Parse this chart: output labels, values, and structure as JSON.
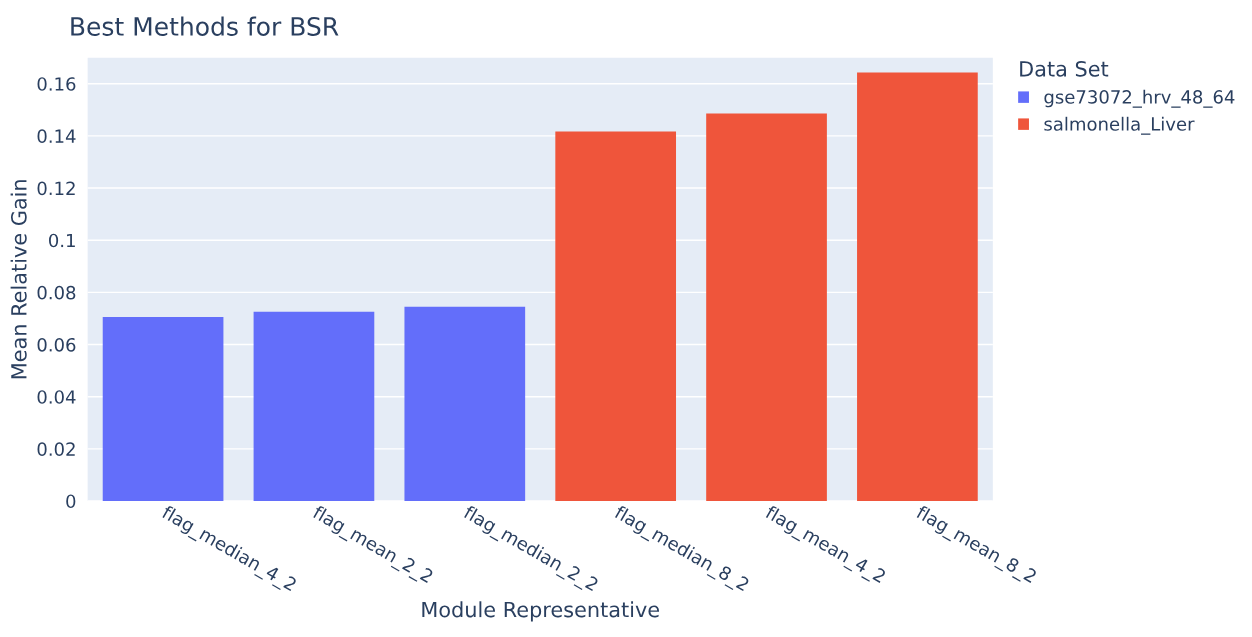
{
  "chart_data": {
    "type": "bar",
    "title": "Best Methods for BSR",
    "xlabel": "Module Representative",
    "ylabel": "Mean Relative Gain",
    "legend_title": "Data Set",
    "categories": [
      "flag_median_4_2",
      "flag_mean_2_2",
      "flag_median_2_2",
      "flag_median_8_2",
      "flag_mean_4_2",
      "flag_mean_8_2"
    ],
    "series": [
      {
        "name": "gse73072_hrv_48_64",
        "color": "#636efa",
        "values": [
          0.0706,
          0.0726,
          0.0745,
          null,
          null,
          null
        ]
      },
      {
        "name": "salmonella_Liver",
        "color": "#ef553b",
        "values": [
          null,
          null,
          null,
          0.1417,
          0.1486,
          0.1643
        ]
      }
    ],
    "ylim": [
      0,
      0.17
    ],
    "yticks": [
      0,
      0.02,
      0.04,
      0.06,
      0.08,
      0.1,
      0.12,
      0.14,
      0.16
    ],
    "grid": "y",
    "legend": "top right"
  }
}
